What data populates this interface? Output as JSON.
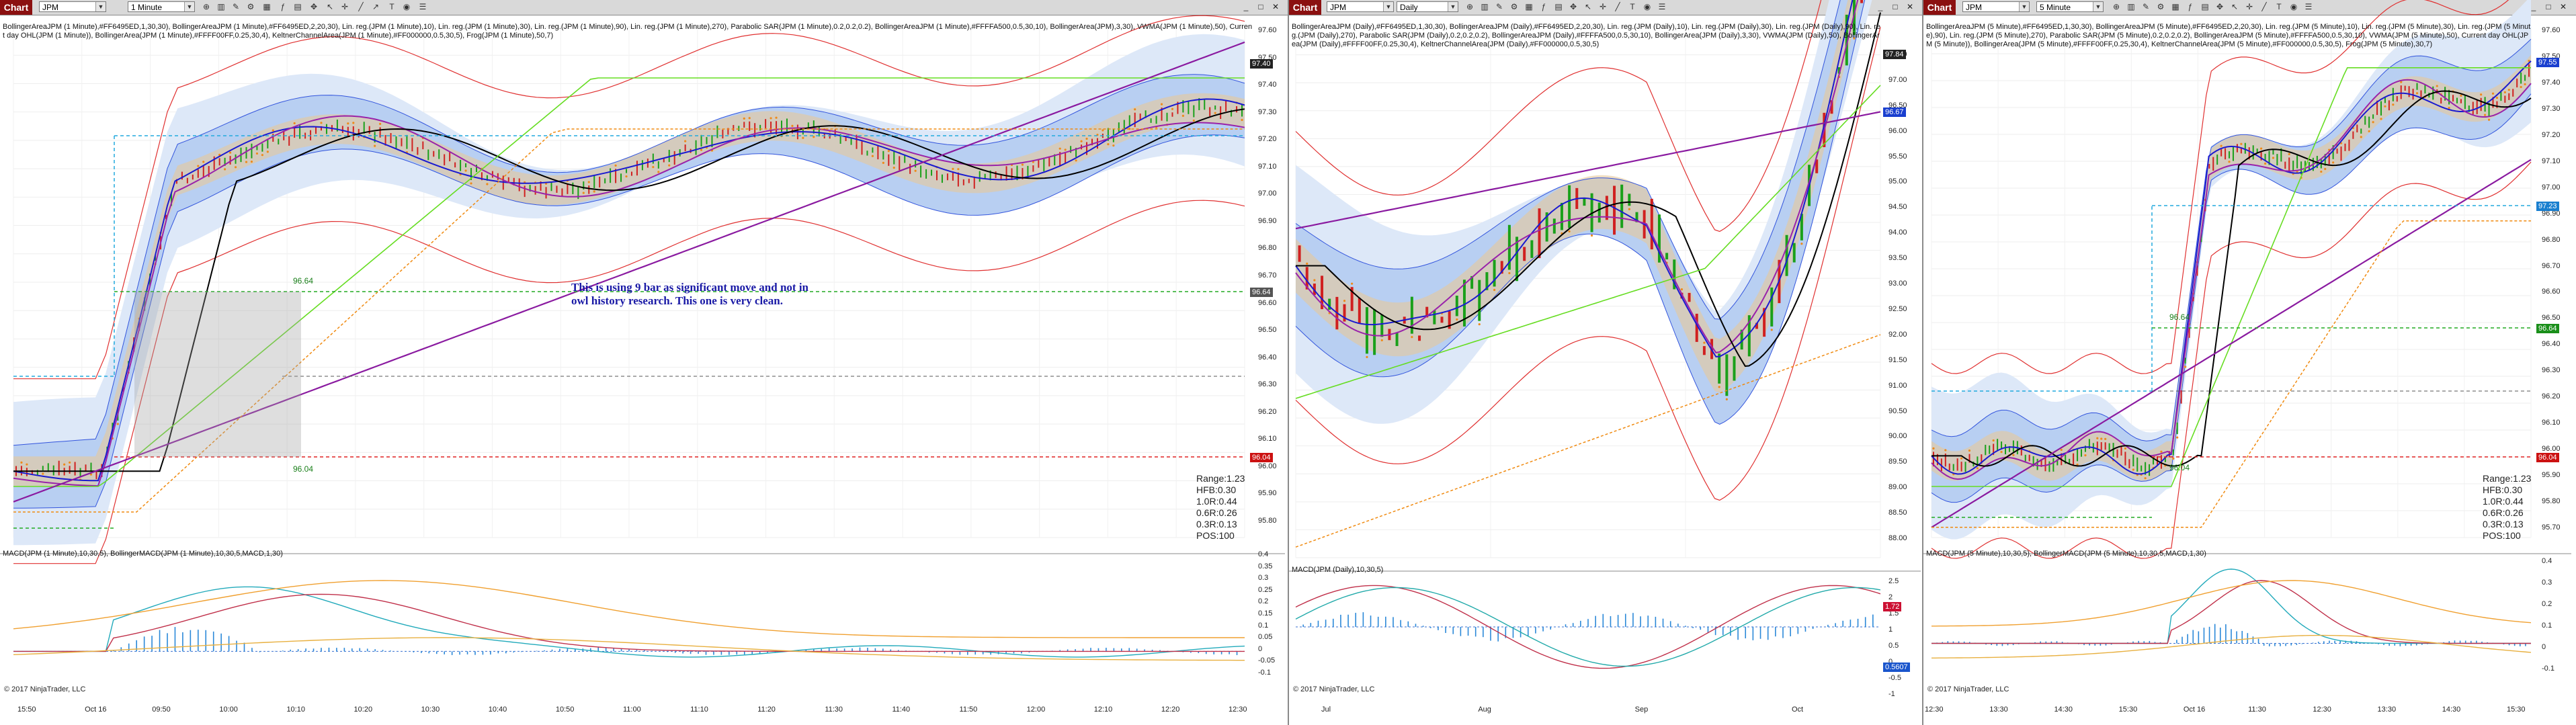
{
  "windows": [
    {
      "chart_label": "Chart",
      "instrument": "JPM",
      "interval": "1 Minute",
      "indicators": "BollingerAreaJPM (1 Minute),#FF6495ED,1,30,30), BollingerAreaJPM (1 Minute),#FF6495ED,2,20,30), Lin. reg.(JPM (1 Minute),10), Lin. reg.(JPM (1 Minute),30), Lin. reg.(JPM (1 Minute),90), Lin. reg.(JPM (1 Minute),270), Parabolic SAR(JPM (1 Minute),0.2,0.2,0.2), BollingerAreaJPM (1 Minute),#FFFFA500,0.5,30,10), BollingerArea(JPM),3,30), VWMA(JPM (1 Minute),50), Current day OHL(JPM (1 Minute)), BollingerArea(JPM (1 Minute),#FFFF00FF,0.25,30,4), KeltnerChannelArea(JPM (1 Minute),#FF000000,0.5,30,5), Frog(JPM (1 Minute),50,7)",
      "macd_label": "MACD(JPM (1 Minute),10,30,5), BollingerMACD(JPM (1 Minute),10,30,5,MACD,1,30)",
      "annotation": "This is using 9 bar as significant move and not in owl history research. This one is very clean.",
      "level_label_top": "96.64",
      "level_label_bottom": "96.04",
      "stats": [
        "Range:1.23",
        "HFB:0.30",
        "1.0R:0.44",
        "0.6R:0.26",
        "0.3R:0.13",
        "POS:100"
      ],
      "copyright": "© 2017 NinjaTrader, LLC",
      "x_ticks": [
        "15:50",
        "Oct 16",
        "09:50",
        "10:00",
        "10:10",
        "10:20",
        "10:30",
        "10:40",
        "10:50",
        "11:00",
        "11:10",
        "11:20",
        "11:30",
        "11:40",
        "11:50",
        "12:00",
        "12:10",
        "12:20",
        "12:30"
      ],
      "y_ticks": [
        "97.60",
        "97.50",
        "97.40",
        "97.30",
        "97.20",
        "97.10",
        "97.00",
        "96.90",
        "96.80",
        "96.70",
        "96.60",
        "96.50",
        "96.40",
        "96.30",
        "96.20",
        "96.10",
        "96.00",
        "95.90",
        "95.80"
      ],
      "flags": [
        {
          "text": "97.40",
          "color": "#222222"
        },
        {
          "text": "96.64",
          "color": "#555555"
        },
        {
          "text": "96.04",
          "color": "#cc1111"
        }
      ],
      "macd_ticks": [
        "0.4",
        "0.35",
        "0.3",
        "0.25",
        "0.2",
        "0.15",
        "0.1",
        "0.05",
        "0",
        "-0.05",
        "-0.1"
      ]
    },
    {
      "chart_label": "Chart",
      "instrument": "JPM",
      "interval": "Daily",
      "indicators": "BollingerAreaJPM (Daily),#FF6495ED,1,30,30), BollingerAreaJPM (Daily),#FF6495ED,2,20,30), Lin. reg.(JPM (Daily),10), Lin. reg.(JPM (Daily),30), Lin. reg.(JPM (Daily),90), Lin. reg.(JPM (Daily),270), Parabolic SAR(JPM (Daily),0.2,0.2,0.2), BollingerAreaJPM (Daily),#FFFFA500,0.5,30,10), BollingerArea(JPM (Daily),3,30), VWMA(JPM (Daily),50), BollingerArea(JPM (Daily),#FFFF00FF,0.25,30,4), KeltnerChannelArea(JPM (Daily),#FF000000,0.5,30,5)",
      "macd_label": "MACD(JPM (Daily),10,30,5)",
      "copyright": "© 2017 NinjaTrader, LLC",
      "x_ticks": [
        "Jul",
        "Aug",
        "Sep",
        "Oct"
      ],
      "y_ticks": [
        "97.50",
        "97.00",
        "96.50",
        "96.00",
        "95.50",
        "95.00",
        "94.50",
        "94.00",
        "93.50",
        "93.00",
        "92.50",
        "92.00",
        "91.50",
        "91.00",
        "90.50",
        "90.00",
        "89.50",
        "89.00",
        "88.50",
        "88.00"
      ],
      "flags": [
        {
          "text": "97.84",
          "color": "#222222"
        },
        {
          "text": "96.67",
          "color": "#1a3fcf"
        }
      ],
      "macd_ticks": [
        "2.5",
        "2",
        "1.5",
        "1",
        "0.5",
        "0",
        "-0.5",
        "-1"
      ],
      "macd_flags": [
        {
          "text": "1.72",
          "color": "#cc1133"
        },
        {
          "text": "0.5607",
          "color": "#1a55cc"
        }
      ]
    },
    {
      "chart_label": "Chart",
      "instrument": "JPM",
      "interval": "5 Minute",
      "indicators": "BollingerAreaJPM (5 Minute),#FF6495ED,1,30,30), BollingerAreaJPM (5 Minute),#FF6495ED,2,20,30), Lin. reg.(JPM (5 Minute),10), Lin. reg.(JPM (5 Minute),30), Lin. reg.(JPM (5 Minute),90), Lin. reg.(JPM (5 Minute),270), Parabolic SAR(JPM (5 Minute),0.2,0.2,0.2), BollingerAreaJPM (5 Minute),#FFFFA500,0.5,30,10), VWMA(JPM (5 Minute),50), Current day OHL(JPM (5 Minute)), BollingerArea(JPM (5 Minute),#FFFF00FF,0.25,30,4), KeltnerChannelArea(JPM (5 Minute),#FF000000,0.5,30,5), Frog(JPM (5 Minute),30,7)",
      "macd_label": "MACD(JPM (5 Minute),10,30,5), BollingerMACD(JPM (5 Minute),10,30,5,MACD,1,30)",
      "level_label_top": "96.64",
      "level_label_bottom": "96.04",
      "stats": [
        "Range:1.23",
        "HFB:0.30",
        "1.0R:0.44",
        "0.6R:0.26",
        "0.3R:0.13",
        "POS:100"
      ],
      "copyright": "© 2017 NinjaTrader, LLC",
      "x_ticks": [
        "12:30",
        "13:30",
        "14:30",
        "15:30",
        "Oct 16",
        "11:30",
        "12:30",
        "13:30",
        "14:30",
        "15:30"
      ],
      "y_ticks": [
        "97.60",
        "97.50",
        "97.40",
        "97.30",
        "97.20",
        "97.10",
        "97.00",
        "96.90",
        "96.80",
        "96.70",
        "96.60",
        "96.50",
        "96.40",
        "96.30",
        "96.20",
        "96.10",
        "96.00",
        "95.90",
        "95.80",
        "95.70"
      ],
      "flags": [
        {
          "text": "97.55",
          "color": "#1a3fcf"
        },
        {
          "text": "97.23",
          "color": "#1a7fcf"
        },
        {
          "text": "96.64",
          "color": "#1a8f1a"
        },
        {
          "text": "96.04",
          "color": "#cc1111"
        }
      ],
      "macd_ticks": [
        "0.4",
        "0.3",
        "0.2",
        "0.1",
        "0",
        "-0.1"
      ]
    }
  ]
}
